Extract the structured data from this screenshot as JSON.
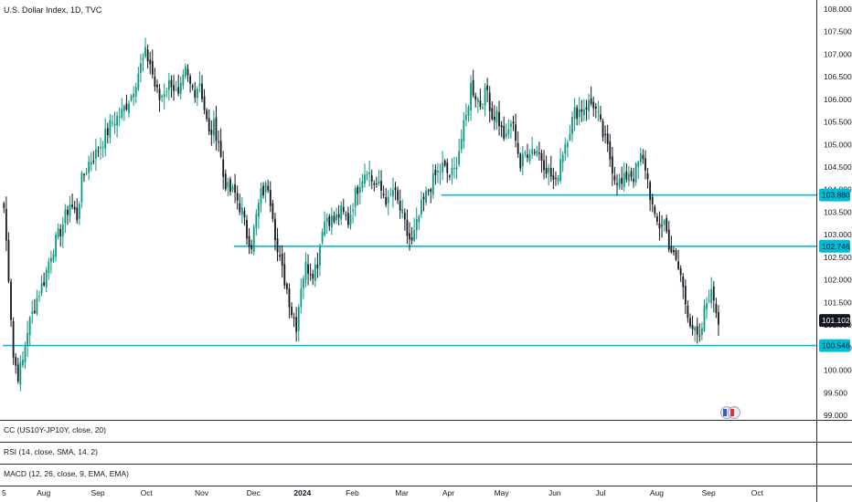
{
  "header": {
    "title": "U.S. Dollar Index, 1D, TVC"
  },
  "indicators": [
    "CC (US10Y-JP10Y, close, 20)",
    "RSI (14, close, SMA, 14, 2)",
    "MACD (12, 26, close, 9, EMA, EMA)"
  ],
  "colors": {
    "up": "#089981",
    "down": "#131722",
    "level_line": "#00bcd4",
    "last_badge": "#131722",
    "level_badge": "#00bcd4",
    "grid_border": "#2a2e39"
  },
  "chart_data": {
    "type": "candlestick",
    "title": "U.S. Dollar Index",
    "interval": "1D",
    "source": "TVC",
    "ylim": [
      98.9,
      108.2
    ],
    "y_ticks": [
      99.0,
      99.5,
      100.0,
      100.5,
      101.0,
      101.5,
      102.0,
      102.5,
      103.0,
      103.5,
      104.0,
      104.5,
      105.0,
      105.5,
      106.0,
      106.5,
      107.0,
      107.5,
      108.0
    ],
    "y_tick_labels": [
      "99.000",
      "99.500",
      "100.000",
      "100.500",
      "101.000",
      "101.500",
      "102.000",
      "102.500",
      "103.000",
      "103.500",
      "104.000",
      "104.500",
      "105.000",
      "105.500",
      "106.000",
      "106.500",
      "107.000",
      "107.500",
      "108.000"
    ],
    "x_ticks": [
      {
        "label": "5",
        "bar": 0,
        "bold": false
      },
      {
        "label": "Aug",
        "bar": 17,
        "bold": false
      },
      {
        "label": "Sep",
        "bar": 40,
        "bold": false
      },
      {
        "label": "Oct",
        "bar": 61,
        "bold": false
      },
      {
        "label": "Nov",
        "bar": 84,
        "bold": false
      },
      {
        "label": "Dec",
        "bar": 106,
        "bold": false
      },
      {
        "label": "2024",
        "bar": 126,
        "bold": true
      },
      {
        "label": "Feb",
        "bar": 148,
        "bold": false
      },
      {
        "label": "Mar",
        "bar": 169,
        "bold": false
      },
      {
        "label": "Apr",
        "bar": 189,
        "bold": false
      },
      {
        "label": "May",
        "bar": 211,
        "bold": false
      },
      {
        "label": "Jun",
        "bar": 234,
        "bold": false
      },
      {
        "label": "Jul",
        "bar": 254,
        "bold": false
      },
      {
        "label": "Aug",
        "bar": 277,
        "bold": false
      },
      {
        "label": "Sep",
        "bar": 299,
        "bold": false
      },
      {
        "label": "Oct",
        "bar": 320,
        "bold": false
      }
    ],
    "total_bar_slots": 345,
    "anchors": [
      [
        0,
        103.6
      ],
      [
        2,
        102.1
      ],
      [
        4,
        100.3
      ],
      [
        6,
        99.9
      ],
      [
        8,
        100.2
      ],
      [
        10,
        100.9
      ],
      [
        14,
        101.6
      ],
      [
        17,
        102.0
      ],
      [
        20,
        102.6
      ],
      [
        24,
        103.1
      ],
      [
        28,
        103.7
      ],
      [
        31,
        103.4
      ],
      [
        33,
        104.2
      ],
      [
        36,
        104.6
      ],
      [
        39,
        104.8
      ],
      [
        42,
        105.1
      ],
      [
        46,
        105.5
      ],
      [
        50,
        105.7
      ],
      [
        54,
        106.1
      ],
      [
        57,
        106.6
      ],
      [
        60,
        107.0
      ],
      [
        62,
        106.8
      ],
      [
        64,
        106.3
      ],
      [
        66,
        106.0
      ],
      [
        68,
        106.2
      ],
      [
        71,
        106.4
      ],
      [
        74,
        106.0
      ],
      [
        77,
        106.6
      ],
      [
        79,
        106.3
      ],
      [
        81,
        106.2
      ],
      [
        83,
        106.4
      ],
      [
        85,
        105.8
      ],
      [
        87,
        105.2
      ],
      [
        89,
        105.4
      ],
      [
        91,
        105.1
      ],
      [
        93,
        104.3
      ],
      [
        95,
        104.0
      ],
      [
        98,
        103.9
      ],
      [
        101,
        103.5
      ],
      [
        103,
        103.0
      ],
      [
        105,
        102.8
      ],
      [
        107,
        103.4
      ],
      [
        109,
        103.9
      ],
      [
        112,
        104.1
      ],
      [
        114,
        103.5
      ],
      [
        116,
        102.6
      ],
      [
        118,
        102.2
      ],
      [
        120,
        101.8
      ],
      [
        122,
        101.3
      ],
      [
        124,
        101.0
      ],
      [
        126,
        101.9
      ],
      [
        128,
        102.3
      ],
      [
        131,
        102.2
      ],
      [
        133,
        102.4
      ],
      [
        135,
        103.2
      ],
      [
        137,
        103.4
      ],
      [
        140,
        103.3
      ],
      [
        143,
        103.5
      ],
      [
        146,
        103.3
      ],
      [
        149,
        103.9
      ],
      [
        151,
        104.2
      ],
      [
        154,
        104.5
      ],
      [
        156,
        104.2
      ],
      [
        158,
        104.1
      ],
      [
        161,
        103.9
      ],
      [
        163,
        103.7
      ],
      [
        165,
        104.0
      ],
      [
        167,
        103.7
      ],
      [
        169,
        103.4
      ],
      [
        171,
        103.0
      ],
      [
        173,
        102.8
      ],
      [
        175,
        103.2
      ],
      [
        177,
        103.6
      ],
      [
        180,
        104.0
      ],
      [
        183,
        104.3
      ],
      [
        186,
        104.5
      ],
      [
        189,
        104.3
      ],
      [
        191,
        104.4
      ],
      [
        193,
        104.9
      ],
      [
        196,
        105.6
      ],
      [
        198,
        106.3
      ],
      [
        200,
        106.1
      ],
      [
        202,
        105.9
      ],
      [
        205,
        106.2
      ],
      [
        207,
        105.6
      ],
      [
        209,
        105.7
      ],
      [
        211,
        105.3
      ],
      [
        213,
        105.1
      ],
      [
        215,
        105.5
      ],
      [
        217,
        105.2
      ],
      [
        219,
        104.5
      ],
      [
        221,
        104.8
      ],
      [
        223,
        104.9
      ],
      [
        226,
        104.9
      ],
      [
        229,
        104.6
      ],
      [
        232,
        104.3
      ],
      [
        234,
        104.1
      ],
      [
        236,
        104.7
      ],
      [
        239,
        105.2
      ],
      [
        242,
        105.7
      ],
      [
        245,
        105.8
      ],
      [
        248,
        105.9
      ],
      [
        250,
        105.9
      ],
      [
        252,
        105.6
      ],
      [
        254,
        105.2
      ],
      [
        256,
        104.9
      ],
      [
        259,
        104.3
      ],
      [
        262,
        104.1
      ],
      [
        265,
        104.4
      ],
      [
        267,
        104.3
      ],
      [
        270,
        104.7
      ],
      [
        272,
        104.5
      ],
      [
        274,
        103.9
      ],
      [
        276,
        103.3
      ],
      [
        278,
        103.2
      ],
      [
        280,
        103.3
      ],
      [
        282,
        102.8
      ],
      [
        284,
        102.5
      ],
      [
        287,
        102.1
      ],
      [
        289,
        101.5
      ],
      [
        291,
        101.1
      ],
      [
        293,
        100.8
      ],
      [
        295,
        100.6
      ],
      [
        297,
        101.3
      ],
      [
        299,
        101.7
      ],
      [
        301,
        101.6
      ],
      [
        303,
        101.1
      ]
    ],
    "horizontal_levels": [
      {
        "value": 103.88,
        "label": "103.880",
        "from_bar": 186
      },
      {
        "value": 102.746,
        "label": "102.746",
        "from_bar": 98
      },
      {
        "value": 100.546,
        "label": "100.546",
        "from_bar": 0
      }
    ],
    "last_price": {
      "value": 101.102,
      "label": "101.102"
    }
  }
}
